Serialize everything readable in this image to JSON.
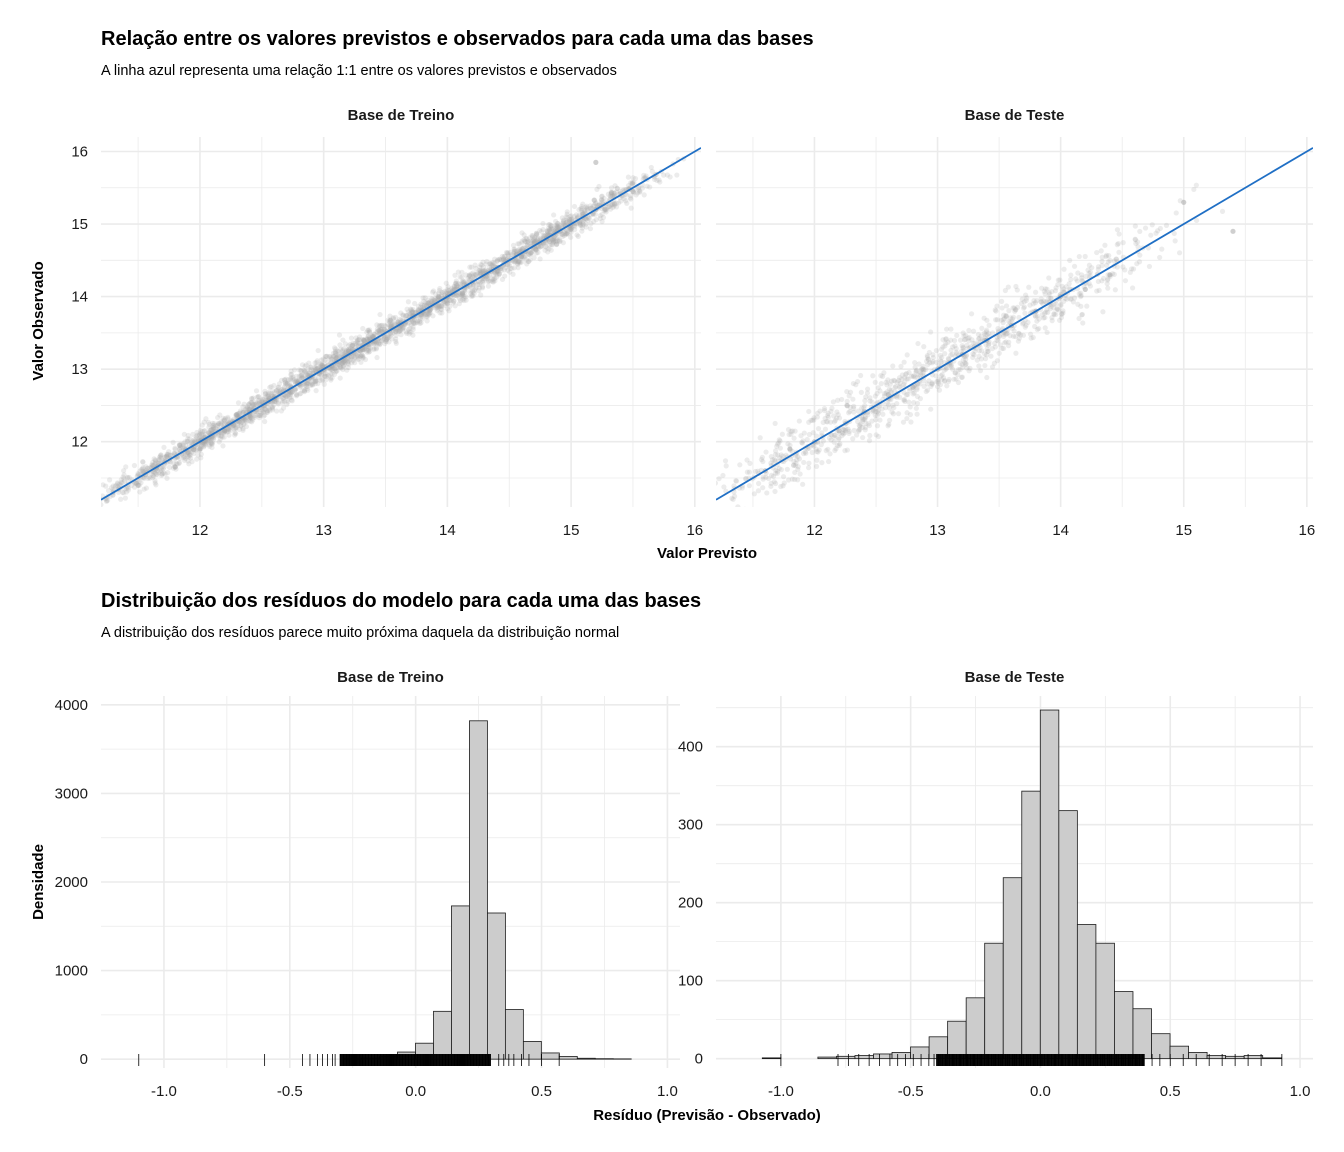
{
  "colors": {
    "grid": "#ebebeb",
    "point": "#a8a8a8",
    "line": "#1f6fc5",
    "bar_fill": "#cccccc",
    "bar_stroke": "#1a1a1a"
  },
  "scatter_section": {
    "title": "Relação entre os valores previstos e observados para cada uma das bases",
    "subtitle": "A linha azul representa uma relação 1:1 entre os valores previstos e observados",
    "xlabel": "Valor Previsto",
    "ylabel": "Valor Observado"
  },
  "hist_section": {
    "title": "Distribuição dos resíduos do modelo para cada uma das bases",
    "subtitle": "A distribuição dos resíduos parece muito próxima daquela da distribuição normal",
    "xlabel": "Resíduo (Previsão - Observado)",
    "ylabel": "Densidade"
  },
  "chart_data": [
    {
      "type": "scatter",
      "panel": "Base de Treino",
      "xlim": [
        11.2,
        16.05
      ],
      "ylim": [
        11.1,
        16.2
      ],
      "xticks": [
        "12",
        "13",
        "14",
        "15",
        "16"
      ],
      "yticks": [
        "12",
        "13",
        "14",
        "15",
        "16"
      ],
      "reference_line": "1:1",
      "series": [
        {
          "x": [
            11.5,
            11.8,
            12.0,
            12.2,
            12.4,
            12.6,
            12.8,
            13.0,
            13.2,
            13.4,
            13.6,
            13.8,
            14.0,
            14.2,
            14.4,
            14.6,
            14.8,
            15.0,
            15.2,
            15.5,
            15.2
          ],
          "y": [
            11.4,
            11.65,
            11.9,
            12.15,
            12.4,
            12.6,
            12.8,
            13.0,
            13.25,
            13.45,
            13.65,
            13.8,
            14.0,
            14.2,
            14.35,
            14.55,
            14.8,
            15.0,
            15.2,
            15.45,
            15.85
          ]
        }
      ]
    },
    {
      "type": "scatter",
      "panel": "Base de Teste",
      "xlim": [
        11.2,
        16.05
      ],
      "ylim": [
        11.1,
        16.2
      ],
      "xticks": [
        "12",
        "13",
        "14",
        "15",
        "16"
      ],
      "yticks": [],
      "reference_line": "1:1",
      "series": [
        {
          "x": [
            11.6,
            11.8,
            12.0,
            12.2,
            12.4,
            12.6,
            12.8,
            13.0,
            13.2,
            13.4,
            13.6,
            13.8,
            14.0,
            14.2,
            14.4,
            15.0,
            15.4
          ],
          "y": [
            11.6,
            11.9,
            12.0,
            12.15,
            12.4,
            12.65,
            12.75,
            13.0,
            13.2,
            13.4,
            13.6,
            13.8,
            14.0,
            14.1,
            14.3,
            15.3,
            14.9
          ]
        }
      ]
    },
    {
      "type": "bar",
      "panel": "Base de Treino",
      "xlim": [
        -1.25,
        1.05
      ],
      "ylim": [
        -100,
        4100
      ],
      "xticks": [
        "-1.0",
        "-0.5",
        "0.0",
        "0.5",
        "1.0"
      ],
      "yticks": [
        "0",
        "1000",
        "2000",
        "3000",
        "4000"
      ],
      "bin_width": 0.0714,
      "x_start": -1.143,
      "values": [
        0,
        0,
        0,
        0,
        0,
        0,
        0,
        0,
        0,
        0,
        0,
        0,
        5,
        12,
        30,
        80,
        180,
        540,
        1730,
        3820,
        1650,
        560,
        200,
        70,
        30,
        10,
        5,
        3,
        0,
        0,
        0
      ],
      "rug": [
        -1.1,
        -0.6,
        -0.45,
        -0.42,
        -0.39,
        -0.37,
        -0.35,
        -0.33,
        -0.32,
        0.33,
        0.35,
        0.37,
        0.39,
        0.42,
        0.45,
        0.5,
        0.57
      ]
    },
    {
      "type": "bar",
      "panel": "Base de Teste",
      "xlim": [
        -1.25,
        1.05
      ],
      "ylim": [
        -12,
        465
      ],
      "xticks": [
        "-1.0",
        "-0.5",
        "0.0",
        "0.5",
        "1.0"
      ],
      "yticks": [
        "0",
        "100",
        "200",
        "300",
        "400"
      ],
      "bin_width": 0.0714,
      "x_start": -1.143,
      "values": [
        0,
        1,
        0,
        0,
        2,
        3,
        4,
        6,
        8,
        15,
        28,
        48,
        78,
        148,
        232,
        343,
        447,
        318,
        172,
        148,
        86,
        64,
        32,
        16,
        8,
        4,
        3,
        4,
        1
      ],
      "rug": [
        -1.0,
        -0.78,
        -0.74,
        -0.7,
        -0.66,
        -0.62,
        -0.58,
        -0.55,
        -0.52,
        -0.49,
        -0.46,
        -0.43,
        -0.41,
        0.4,
        0.43,
        0.46,
        0.5,
        0.55,
        0.6,
        0.65,
        0.7,
        0.75,
        0.8,
        0.85,
        0.93
      ]
    }
  ]
}
